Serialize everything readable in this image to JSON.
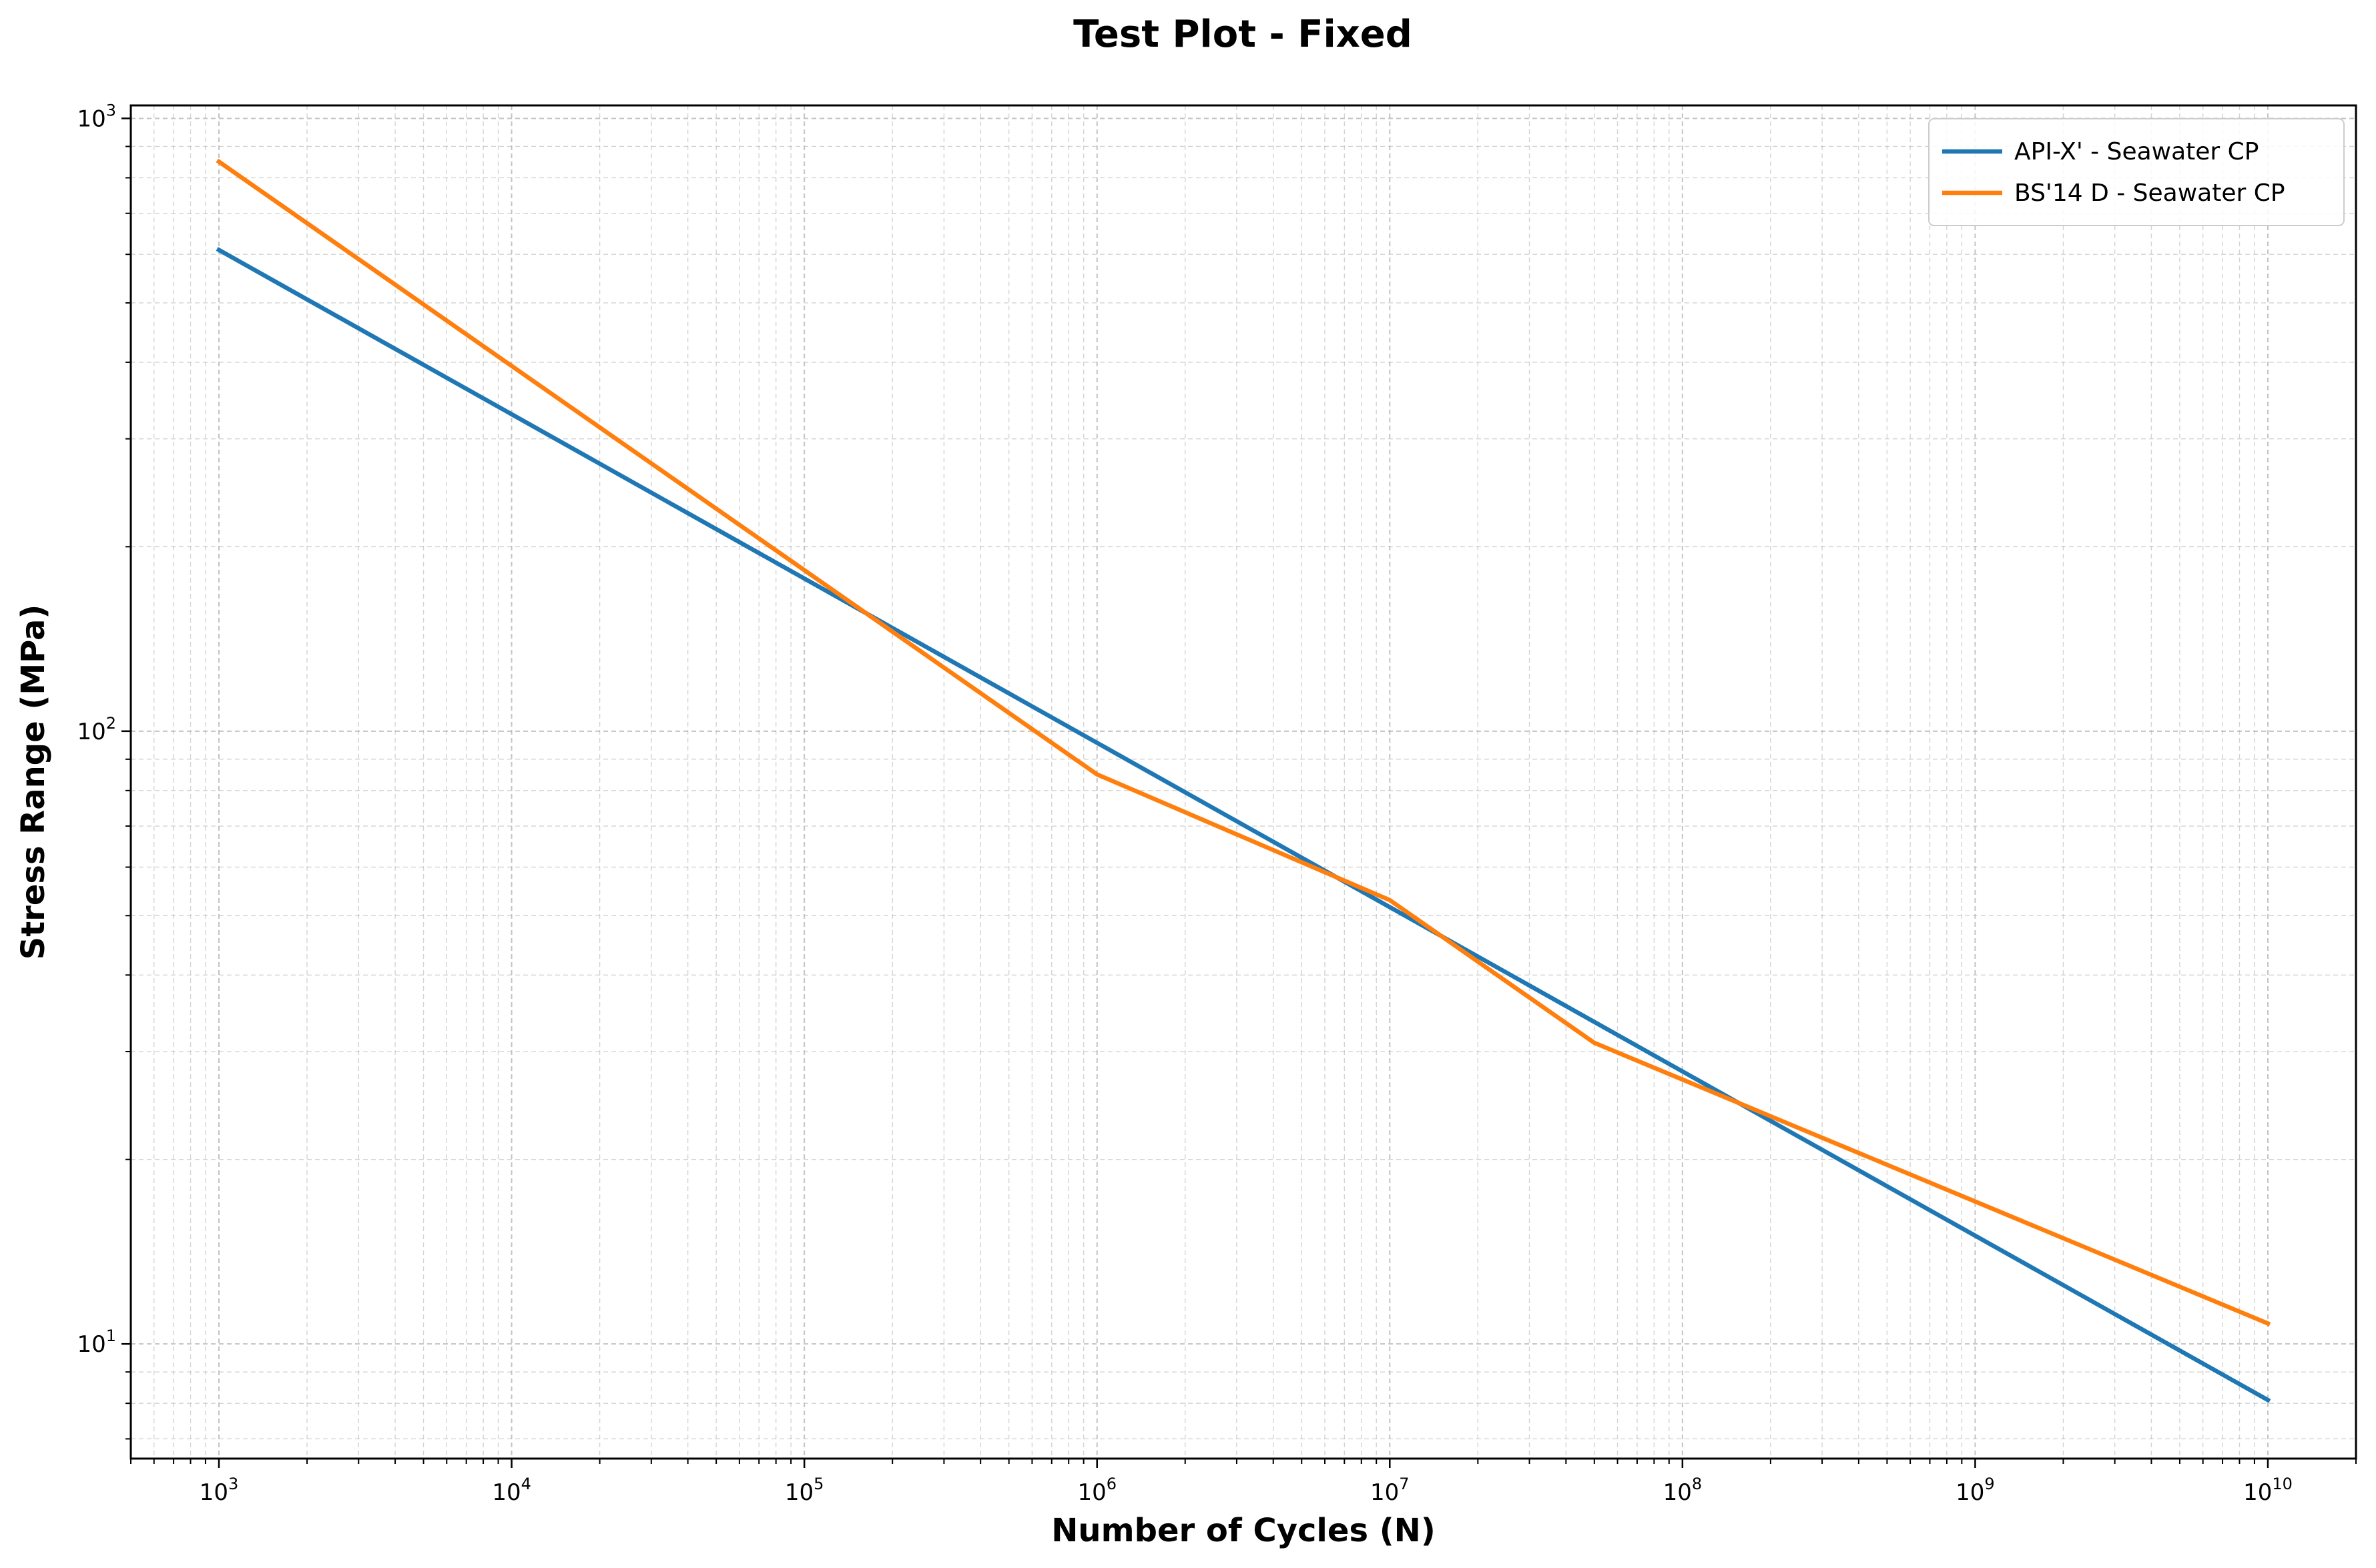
{
  "chart_data": {
    "type": "line",
    "title": "Test Plot - Fixed",
    "xlabel": "Number of Cycles (N)",
    "ylabel": "Stress Range (MPa)",
    "xscale": "log",
    "yscale": "log",
    "xlim": [
      500,
      20000000000
    ],
    "ylim": [
      6.5,
      1050
    ],
    "grid": true,
    "legend_position": "top-right",
    "x_ticks": [
      {
        "value": 1000,
        "base": "10",
        "exp": "3"
      },
      {
        "value": 10000,
        "base": "10",
        "exp": "4"
      },
      {
        "value": 100000,
        "base": "10",
        "exp": "5"
      },
      {
        "value": 1000000,
        "base": "10",
        "exp": "6"
      },
      {
        "value": 10000000,
        "base": "10",
        "exp": "7"
      },
      {
        "value": 100000000,
        "base": "10",
        "exp": "8"
      },
      {
        "value": 1000000000,
        "base": "10",
        "exp": "9"
      },
      {
        "value": 10000000000,
        "base": "10",
        "exp": "10"
      }
    ],
    "y_ticks": [
      {
        "value": 10,
        "base": "10",
        "exp": "1"
      },
      {
        "value": 100,
        "base": "10",
        "exp": "2"
      },
      {
        "value": 1000,
        "base": "10",
        "exp": "3"
      }
    ],
    "series": [
      {
        "name": "API-X' - Seawater CP",
        "color": "#1f77b4",
        "points": [
          [
            1000,
            610
          ],
          [
            10000000000,
            8.1
          ]
        ]
      },
      {
        "name": "BS'14 D - Seawater CP",
        "color": "#ff7f0e",
        "points": [
          [
            1000,
            850
          ],
          [
            1000000,
            85
          ],
          [
            10000000,
            53
          ],
          [
            50000000,
            31
          ],
          [
            10000000000,
            10.8
          ]
        ]
      }
    ]
  }
}
